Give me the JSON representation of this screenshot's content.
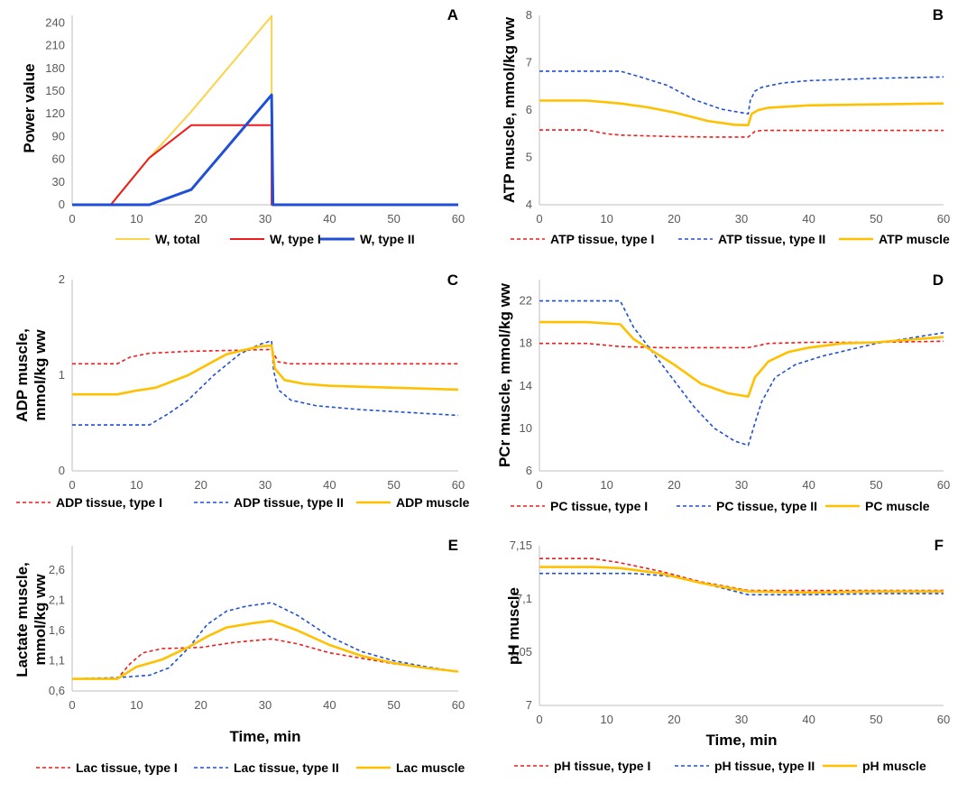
{
  "colors": {
    "type_I": "#ee1c1c",
    "type_II": "#1f4fd6",
    "muscle": "#ffc000",
    "total": "#fcd34d"
  },
  "chart_data": [
    {
      "panel": "A",
      "type": "line",
      "ylabel": "Power  value",
      "xlabel": "",
      "xlim": [
        0,
        60
      ],
      "ylim": [
        0,
        250
      ],
      "xticks": [
        0,
        10,
        20,
        30,
        40,
        50,
        60
      ],
      "yticks": [
        0,
        30,
        60,
        90,
        120,
        150,
        180,
        210,
        240
      ],
      "ytick_labels": [
        "0",
        "30",
        "60",
        "90",
        "120",
        "150",
        "180",
        "210",
        "240"
      ],
      "legend": "bottom",
      "series": [
        {
          "name": "W, total",
          "color": "#fcd34d",
          "style": "solid",
          "width": 2,
          "x": [
            0,
            6,
            12,
            18.5,
            31,
            31,
            31.2,
            60
          ],
          "y": [
            0,
            0,
            62,
            123,
            249,
            145,
            0,
            0
          ]
        },
        {
          "name": "W, type I",
          "color": "#ee1c1c",
          "style": "solid",
          "width": 2,
          "x": [
            0,
            6,
            12,
            18.5,
            31,
            31,
            31.2,
            60
          ],
          "y": [
            0,
            0,
            62,
            105,
            105,
            0,
            0,
            0
          ]
        },
        {
          "name": "W, type II",
          "color": "#1f4fd6",
          "style": "solid",
          "width": 3,
          "x": [
            0,
            12,
            18.5,
            31,
            31.2,
            60
          ],
          "y": [
            0,
            0,
            20,
            145,
            0,
            0
          ]
        }
      ]
    },
    {
      "panel": "B",
      "type": "line",
      "ylabel": "ATP muscle, mmol/kg ww",
      "xlabel": "",
      "xlim": [
        0,
        60
      ],
      "ylim": [
        4,
        8
      ],
      "xticks": [
        0,
        10,
        20,
        30,
        40,
        50,
        60
      ],
      "yticks": [
        4,
        5,
        6,
        7,
        8
      ],
      "ytick_labels": [
        "4",
        "5",
        "6",
        "7",
        "8"
      ],
      "legend": "bottom",
      "series": [
        {
          "name": "ATP tissue, type I",
          "color": "#ee1c1c",
          "style": "dashed",
          "width": 1.6,
          "x": [
            0,
            7,
            10,
            12,
            20,
            25,
            31,
            32,
            33,
            40,
            50,
            60
          ],
          "y": [
            5.58,
            5.58,
            5.5,
            5.47,
            5.44,
            5.43,
            5.43,
            5.55,
            5.57,
            5.57,
            5.57,
            5.57
          ]
        },
        {
          "name": "ATP tissue, type II",
          "color": "#1f4fd6",
          "style": "dashed",
          "width": 1.6,
          "x": [
            0,
            12,
            15,
            19,
            23,
            27,
            31,
            31.3,
            32,
            33,
            36,
            40,
            50,
            60
          ],
          "y": [
            6.82,
            6.82,
            6.7,
            6.52,
            6.22,
            6.02,
            5.92,
            6.2,
            6.4,
            6.48,
            6.57,
            6.62,
            6.67,
            6.7
          ]
        },
        {
          "name": "ATP muscle",
          "color": "#ffc000",
          "style": "solid",
          "width": 2.6,
          "x": [
            0,
            7,
            12,
            16,
            20,
            25,
            29,
            31,
            31.5,
            32.5,
            34,
            40,
            50,
            60
          ],
          "y": [
            6.2,
            6.2,
            6.14,
            6.06,
            5.95,
            5.77,
            5.69,
            5.68,
            5.92,
            6.0,
            6.05,
            6.1,
            6.12,
            6.14
          ]
        }
      ]
    },
    {
      "panel": "C",
      "type": "line",
      "ylabel": "ADP muscle, mmol/kg ww",
      "xlabel": "",
      "xlim": [
        0,
        60
      ],
      "ylim": [
        0,
        2
      ],
      "xticks": [
        0,
        10,
        20,
        30,
        40,
        50,
        60
      ],
      "yticks": [
        0,
        1,
        2
      ],
      "ytick_labels": [
        "0",
        "1",
        "2"
      ],
      "legend": "bottom",
      "series": [
        {
          "name": "ADP tissue, type I",
          "color": "#ee1c1c",
          "style": "dashed",
          "width": 1.6,
          "x": [
            0,
            7,
            9,
            12,
            18,
            25,
            31,
            32,
            34,
            40,
            50,
            60
          ],
          "y": [
            1.12,
            1.12,
            1.19,
            1.23,
            1.25,
            1.26,
            1.27,
            1.14,
            1.12,
            1.12,
            1.12,
            1.12
          ]
        },
        {
          "name": "ADP tissue, type II",
          "color": "#1f4fd6",
          "style": "dashed",
          "width": 1.6,
          "x": [
            0,
            12,
            15,
            18,
            22,
            26,
            29,
            31,
            31.3,
            32,
            34,
            38,
            45,
            55,
            60
          ],
          "y": [
            0.48,
            0.48,
            0.6,
            0.74,
            1.0,
            1.22,
            1.32,
            1.36,
            1.05,
            0.85,
            0.74,
            0.68,
            0.64,
            0.6,
            0.58
          ]
        },
        {
          "name": "ADP muscle",
          "color": "#ffc000",
          "style": "solid",
          "width": 2.6,
          "x": [
            0,
            7,
            10,
            13,
            18,
            24,
            29,
            31,
            31.5,
            33,
            36,
            40,
            50,
            60
          ],
          "y": [
            0.8,
            0.8,
            0.84,
            0.87,
            1.0,
            1.22,
            1.3,
            1.31,
            1.07,
            0.95,
            0.91,
            0.89,
            0.87,
            0.85
          ]
        }
      ]
    },
    {
      "panel": "D",
      "type": "line",
      "ylabel": "PCr muscle, mmol/kg ww",
      "xlabel": "",
      "xlim": [
        0,
        60
      ],
      "ylim": [
        6,
        24
      ],
      "xticks": [
        0,
        10,
        20,
        30,
        40,
        50,
        60
      ],
      "yticks": [
        6,
        10,
        14,
        18,
        22
      ],
      "ytick_labels": [
        "6",
        "10",
        "14",
        "18",
        "22"
      ],
      "legend": "bottom",
      "series": [
        {
          "name": "PC tissue, type I",
          "color": "#ee1c1c",
          "style": "dashed",
          "width": 1.6,
          "x": [
            0,
            7,
            12,
            18,
            25,
            31,
            34,
            40,
            50,
            60
          ],
          "y": [
            18.0,
            18.0,
            17.7,
            17.6,
            17.6,
            17.6,
            18.0,
            18.1,
            18.1,
            18.2
          ]
        },
        {
          "name": "PC tissue, type II",
          "color": "#1f4fd6",
          "style": "dashed",
          "width": 1.6,
          "x": [
            0,
            12,
            14,
            17,
            20,
            23,
            26,
            29,
            31,
            32,
            33,
            35,
            38,
            42,
            50,
            60
          ],
          "y": [
            22.0,
            22.0,
            19.5,
            17.0,
            14.5,
            12.0,
            10.0,
            8.8,
            8.4,
            10.5,
            12.5,
            14.8,
            16.0,
            16.8,
            18.0,
            19.0
          ]
        },
        {
          "name": "PC muscle",
          "color": "#ffc000",
          "style": "solid",
          "width": 2.6,
          "x": [
            0,
            7,
            12,
            14,
            17,
            20,
            24,
            28,
            31,
            32,
            34,
            37,
            40,
            45,
            50,
            60
          ],
          "y": [
            20.0,
            20.0,
            19.8,
            18.4,
            17.2,
            16.0,
            14.2,
            13.3,
            13.0,
            14.8,
            16.3,
            17.2,
            17.6,
            18.0,
            18.1,
            18.6
          ]
        }
      ]
    },
    {
      "panel": "E",
      "type": "line",
      "ylabel": "Lactate muscle, mmol/kg ww",
      "xlabel": "Time, min",
      "xlim": [
        0,
        60
      ],
      "ylim": [
        0.6,
        3.0
      ],
      "xticks": [
        0,
        10,
        20,
        30,
        40,
        50,
        60
      ],
      "yticks": [
        0.6,
        1.1,
        1.6,
        2.1,
        2.6
      ],
      "ytick_labels": [
        "0,6",
        "1,1",
        "1,6",
        "2,1",
        "2,6"
      ],
      "legend": "bottom",
      "series": [
        {
          "name": "Lac tissue, type I",
          "color": "#ee1c1c",
          "style": "dashed",
          "width": 1.6,
          "x": [
            0,
            7,
            9,
            11,
            14,
            17,
            20,
            25,
            31,
            35,
            40,
            50,
            60
          ],
          "y": [
            0.8,
            0.8,
            1.05,
            1.23,
            1.3,
            1.31,
            1.32,
            1.4,
            1.46,
            1.38,
            1.23,
            1.05,
            0.92
          ]
        },
        {
          "name": "Lac tissue, type II",
          "color": "#1f4fd6",
          "style": "dashed",
          "width": 1.6,
          "x": [
            0,
            7,
            12,
            15,
            18,
            21,
            24,
            27,
            31,
            35,
            40,
            45,
            50,
            55,
            60
          ],
          "y": [
            0.8,
            0.82,
            0.86,
            0.98,
            1.3,
            1.7,
            1.92,
            2.0,
            2.06,
            1.85,
            1.5,
            1.25,
            1.1,
            1.0,
            0.92
          ]
        },
        {
          "name": "Lac muscle",
          "color": "#ffc000",
          "style": "solid",
          "width": 2.6,
          "x": [
            0,
            7,
            10,
            14,
            18,
            21,
            24,
            28,
            31,
            35,
            40,
            45,
            50,
            55,
            60
          ],
          "y": [
            0.8,
            0.8,
            1.0,
            1.12,
            1.32,
            1.5,
            1.65,
            1.72,
            1.76,
            1.6,
            1.36,
            1.18,
            1.06,
            0.98,
            0.92
          ]
        }
      ]
    },
    {
      "panel": "F",
      "type": "line",
      "ylabel": "pH muscle",
      "xlabel": "Time, min",
      "xlim": [
        0,
        60
      ],
      "ylim": [
        7.0,
        7.15
      ],
      "xticks": [
        0,
        10,
        20,
        30,
        40,
        50,
        60
      ],
      "yticks": [
        7.0,
        7.05,
        7.1,
        7.15
      ],
      "ytick_labels": [
        "7",
        "7,05",
        "7,1",
        "7,15"
      ],
      "legend": "bottom",
      "series": [
        {
          "name": "pH tissue, type I",
          "color": "#ee1c1c",
          "style": "dashed",
          "width": 1.6,
          "x": [
            0,
            8,
            12,
            18,
            24,
            31,
            40,
            50,
            60
          ],
          "y": [
            7.138,
            7.138,
            7.134,
            7.126,
            7.116,
            7.108,
            7.108,
            7.108,
            7.108
          ]
        },
        {
          "name": "pH tissue, type II",
          "color": "#1f4fd6",
          "style": "dashed",
          "width": 1.6,
          "x": [
            0,
            14,
            20,
            26,
            31,
            40,
            50,
            60
          ],
          "y": [
            7.124,
            7.124,
            7.121,
            7.112,
            7.104,
            7.104,
            7.105,
            7.105
          ]
        },
        {
          "name": "pH muscle",
          "color": "#ffc000",
          "style": "solid",
          "width": 2.6,
          "x": [
            0,
            8,
            12,
            18,
            24,
            31,
            40,
            50,
            60
          ],
          "y": [
            7.13,
            7.13,
            7.129,
            7.124,
            7.115,
            7.107,
            7.106,
            7.107,
            7.107
          ]
        }
      ]
    }
  ]
}
